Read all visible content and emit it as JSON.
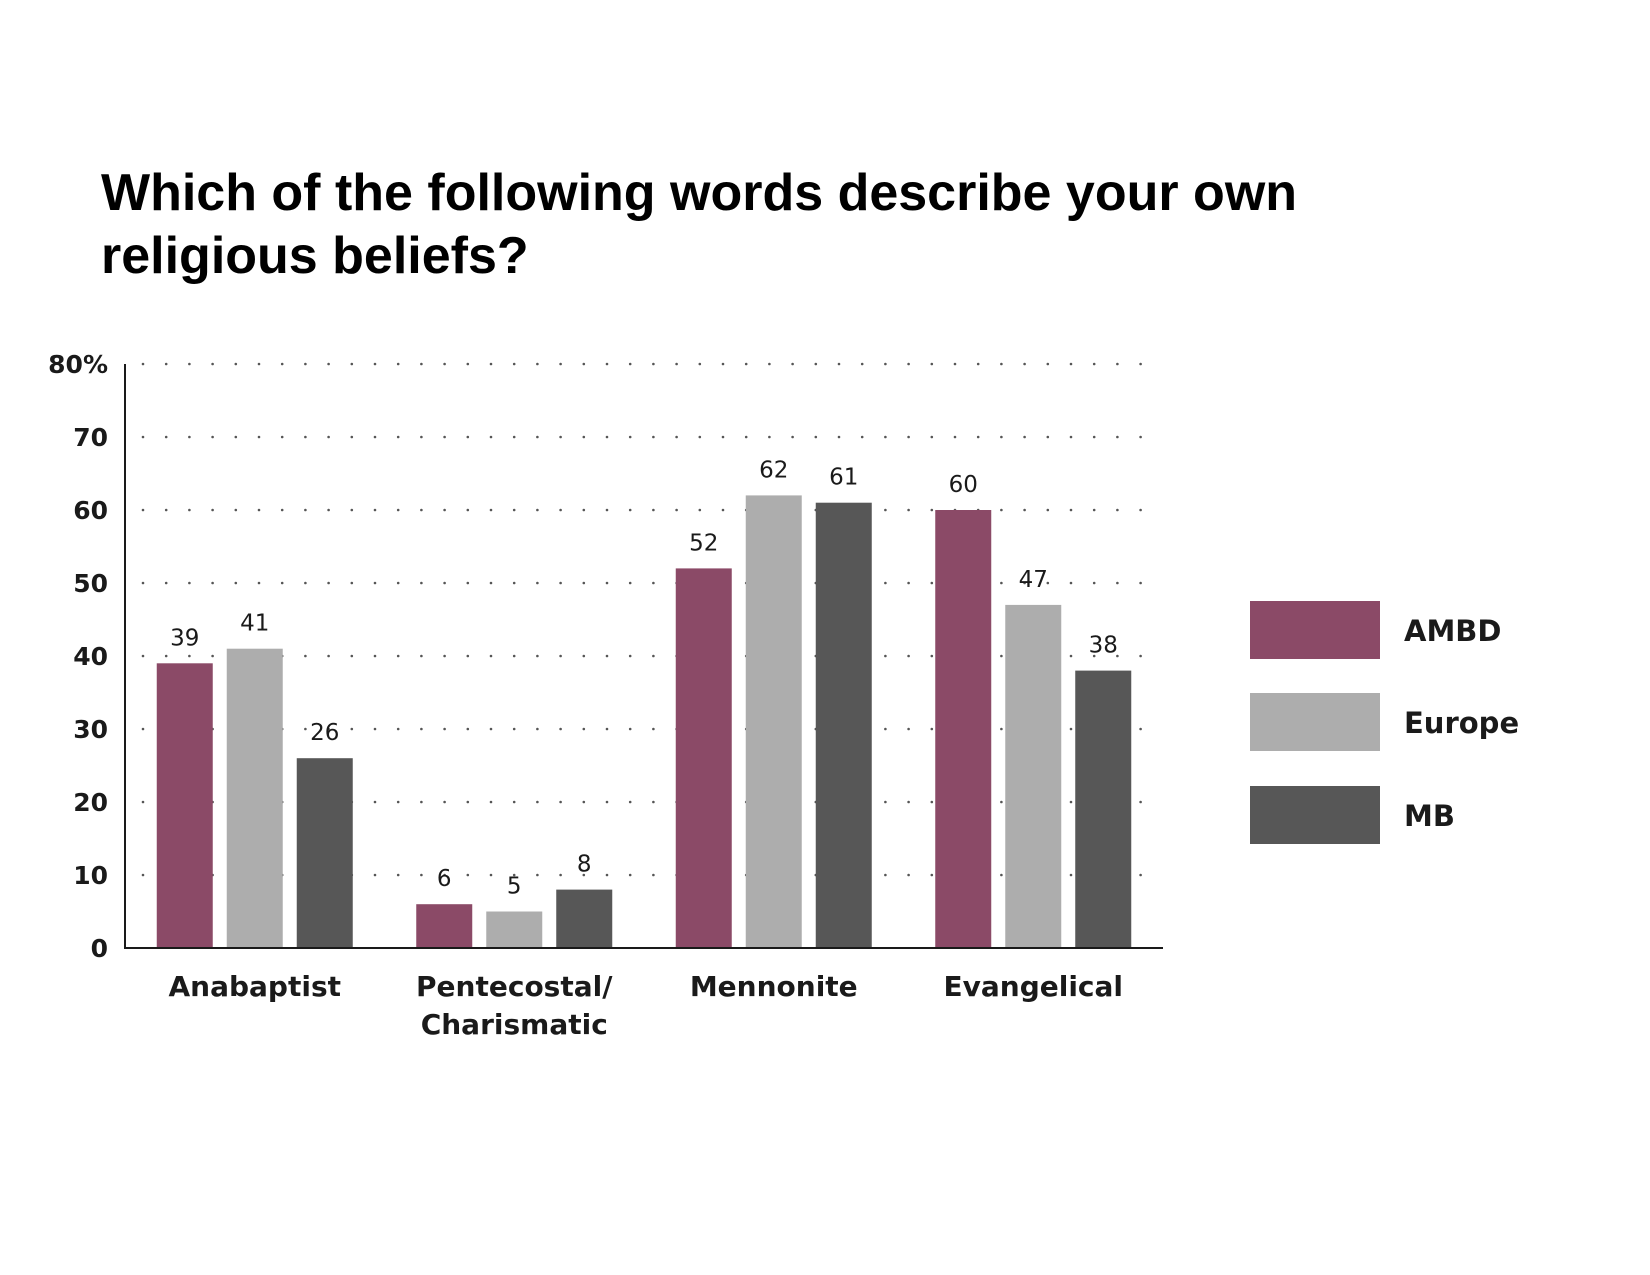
{
  "chart_data": {
    "type": "bar",
    "title": "Which of the following words describe your own religious beliefs?",
    "categories": [
      [
        "Anabaptist"
      ],
      [
        "Pentecostal/",
        "Charismatic"
      ],
      [
        "Mennonite"
      ],
      [
        "Evangelical"
      ]
    ],
    "series": [
      {
        "name": "AMBD",
        "color": "#8b4a67",
        "values": [
          39,
          6,
          52,
          60
        ]
      },
      {
        "name": "Europe",
        "color": "#adadad",
        "values": [
          41,
          5,
          62,
          47
        ]
      },
      {
        "name": "MB",
        "color": "#575757",
        "values": [
          26,
          8,
          61,
          38
        ]
      }
    ],
    "ylim": [
      0,
      80
    ],
    "yticks": [
      {
        "value": 0,
        "label": "0"
      },
      {
        "value": 10,
        "label": "10"
      },
      {
        "value": 20,
        "label": "20"
      },
      {
        "value": 30,
        "label": "30"
      },
      {
        "value": 40,
        "label": "40"
      },
      {
        "value": 50,
        "label": "50"
      },
      {
        "value": 60,
        "label": "60"
      },
      {
        "value": 70,
        "label": "70"
      },
      {
        "value": 80,
        "label": "80%"
      }
    ],
    "grid": "dotted horizontal",
    "legend": "right",
    "xlabel": "",
    "ylabel": ""
  }
}
